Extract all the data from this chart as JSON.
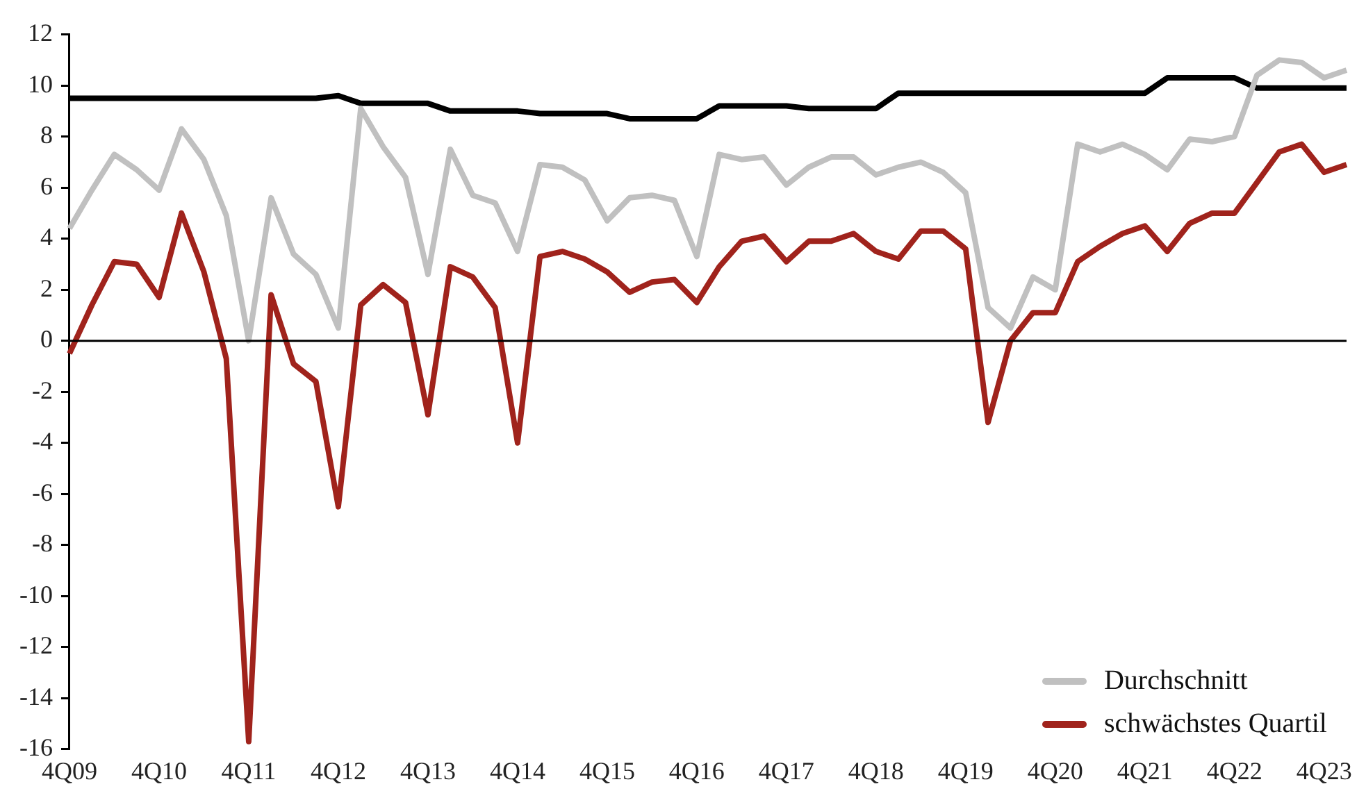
{
  "chart_data": {
    "type": "line",
    "categories": [
      "4Q09",
      null,
      null,
      null,
      "4Q10",
      null,
      null,
      null,
      "4Q11",
      null,
      null,
      null,
      "4Q12",
      null,
      null,
      null,
      "4Q13",
      null,
      null,
      null,
      "4Q14",
      null,
      null,
      null,
      "4Q15",
      null,
      null,
      null,
      "4Q16",
      null,
      null,
      null,
      "4Q17",
      null,
      null,
      null,
      "4Q18",
      null,
      null,
      null,
      "4Q19",
      null,
      null,
      null,
      "4Q20",
      null,
      null,
      null,
      "4Q21",
      null,
      null,
      null,
      "4Q22",
      null,
      null,
      null,
      "4Q23",
      null
    ],
    "series": [
      {
        "name": "Durchschnitt",
        "color": "#c0c0c0",
        "values": [
          4.4,
          5.9,
          7.3,
          6.7,
          5.9,
          8.3,
          7.1,
          4.9,
          0.0,
          5.6,
          3.4,
          2.6,
          0.5,
          9.1,
          7.6,
          6.4,
          2.6,
          7.5,
          5.7,
          5.4,
          3.5,
          6.9,
          6.8,
          6.3,
          4.7,
          5.6,
          5.7,
          5.5,
          3.3,
          7.3,
          7.1,
          7.2,
          6.1,
          6.8,
          7.2,
          7.2,
          6.5,
          6.8,
          7.0,
          6.6,
          5.8,
          1.3,
          0.5,
          2.5,
          2.0,
          7.7,
          7.4,
          7.7,
          7.3,
          6.7,
          7.9,
          7.8,
          8.0,
          10.4,
          11.0,
          10.9,
          10.3,
          10.6
        ]
      },
      {
        "name": "schwächstes Quartil",
        "color": "#a0231c",
        "values": [
          -0.5,
          1.4,
          3.1,
          3.0,
          1.7,
          5.0,
          2.7,
          -0.7,
          -15.7,
          1.8,
          -0.9,
          -1.6,
          -6.5,
          1.4,
          2.2,
          1.5,
          -2.9,
          2.9,
          2.5,
          1.3,
          -4.0,
          3.3,
          3.5,
          3.2,
          2.7,
          1.9,
          2.3,
          2.4,
          1.5,
          2.9,
          3.9,
          4.1,
          3.1,
          3.9,
          3.9,
          4.2,
          3.5,
          3.2,
          4.3,
          4.3,
          3.6,
          -3.2,
          0.0,
          1.1,
          1.1,
          3.1,
          3.7,
          4.2,
          4.5,
          3.5,
          4.6,
          5.0,
          5.0,
          6.2,
          7.4,
          7.7,
          6.6,
          6.9
        ]
      },
      {
        "color": "#000000",
        "values": [
          9.5,
          9.5,
          9.5,
          9.5,
          9.5,
          9.5,
          9.5,
          9.5,
          9.5,
          9.5,
          9.5,
          9.5,
          9.6,
          9.3,
          9.3,
          9.3,
          9.3,
          9.0,
          9.0,
          9.0,
          9.0,
          8.9,
          8.9,
          8.9,
          8.9,
          8.7,
          8.7,
          8.7,
          8.7,
          9.2,
          9.2,
          9.2,
          9.2,
          9.1,
          9.1,
          9.1,
          9.1,
          9.7,
          9.7,
          9.7,
          9.7,
          9.7,
          9.7,
          9.7,
          9.7,
          9.7,
          9.7,
          9.7,
          9.7,
          10.3,
          10.3,
          10.3,
          10.3,
          9.9,
          9.9,
          9.9,
          9.9,
          9.9
        ]
      }
    ],
    "ylim": [
      -16,
      12
    ],
    "yticks": [
      -16,
      -14,
      -12,
      -10,
      -8,
      -6,
      -4,
      -2,
      0,
      2,
      4,
      6,
      8,
      10,
      12
    ],
    "ref_lines": [
      {
        "axis": "y",
        "value": 0,
        "color": "#000000"
      }
    ],
    "legend": "bottom right",
    "grid": false,
    "marker": "none",
    "line_style": "solid"
  }
}
